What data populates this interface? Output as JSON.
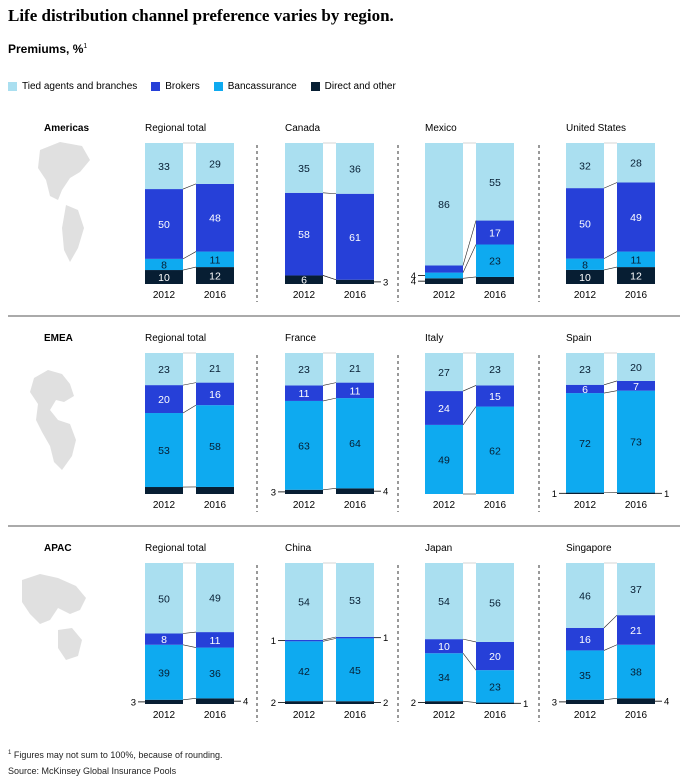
{
  "title": "Life distribution channel preference varies by region.",
  "subtitle": "Premiums, %",
  "subtitle_note": "1",
  "legend": [
    {
      "label": "Tied agents and branches",
      "color": "#aadff0"
    },
    {
      "label": "Brokers",
      "color": "#2640d8"
    },
    {
      "label": "Bancassurance",
      "color": "#0eaaf0"
    },
    {
      "label": "Direct and other",
      "color": "#071e33"
    }
  ],
  "footnote": "Figures may not sum to 100%, because of rounding.",
  "footnote_marker": "1",
  "source": "Source: McKinsey Global Insurance Pools",
  "chart_data": {
    "type": "bar",
    "stacked": true,
    "series_order": [
      "Direct and other",
      "Bancassurance",
      "Brokers",
      "Tied agents and branches"
    ],
    "years": [
      "2012",
      "2016"
    ],
    "regions": [
      {
        "name": "Americas",
        "panels": [
          {
            "title": "Regional total",
            "bars": [
              {
                "values": [
                  10,
                  8,
                  50,
                  33
                ],
                "outside": [
                  null,
                  null,
                  null,
                  null
                ]
              },
              {
                "values": [
                  12,
                  11,
                  48,
                  29
                ],
                "outside": [
                  null,
                  null,
                  null,
                  null
                ]
              }
            ]
          },
          {
            "title": "Canada",
            "bars": [
              {
                "values": [
                  6,
                  0,
                  58,
                  35
                ],
                "outside": [
                  null,
                  null,
                  null,
                  null
                ]
              },
              {
                "values": [
                  3,
                  0,
                  61,
                  36
                ],
                "outside": [
                  "3",
                  null,
                  null,
                  null
                ]
              }
            ]
          },
          {
            "title": "Mexico",
            "bars": [
              {
                "values": [
                  4,
                  4,
                  5,
                  86
                ],
                "outside": [
                  "4",
                  "4",
                  null,
                  null
                ]
              },
              {
                "values": [
                  5,
                  23,
                  17,
                  55
                ],
                "outside": [
                  null,
                  null,
                  null,
                  null
                ]
              }
            ]
          },
          {
            "title": "United States",
            "bars": [
              {
                "values": [
                  10,
                  8,
                  50,
                  32
                ],
                "outside": [
                  null,
                  null,
                  null,
                  null
                ]
              },
              {
                "values": [
                  12,
                  11,
                  49,
                  28
                ],
                "outside": [
                  null,
                  null,
                  null,
                  null
                ]
              }
            ]
          }
        ]
      },
      {
        "name": "EMEA",
        "panels": [
          {
            "title": "Regional total",
            "bars": [
              {
                "values": [
                  5,
                  53,
                  20,
                  23
                ],
                "outside": [
                  null,
                  null,
                  null,
                  null
                ]
              },
              {
                "values": [
                  5,
                  58,
                  16,
                  21
                ],
                "outside": [
                  null,
                  null,
                  null,
                  null
                ]
              }
            ]
          },
          {
            "title": "France",
            "bars": [
              {
                "values": [
                  3,
                  63,
                  11,
                  23
                ],
                "outside": [
                  "3",
                  null,
                  null,
                  null
                ]
              },
              {
                "values": [
                  4,
                  64,
                  11,
                  21
                ],
                "outside": [
                  "4",
                  null,
                  null,
                  null
                ]
              }
            ]
          },
          {
            "title": "Italy",
            "bars": [
              {
                "values": [
                  0,
                  49,
                  24,
                  27
                ],
                "outside": [
                  null,
                  null,
                  null,
                  null
                ]
              },
              {
                "values": [
                  0,
                  62,
                  15,
                  23
                ],
                "outside": [
                  null,
                  null,
                  null,
                  null
                ]
              }
            ]
          },
          {
            "title": "Spain",
            "bars": [
              {
                "values": [
                  1,
                  72,
                  6,
                  23
                ],
                "outside": [
                  "1",
                  null,
                  null,
                  null
                ]
              },
              {
                "values": [
                  1,
                  73,
                  7,
                  20
                ],
                "outside": [
                  "1",
                  null,
                  null,
                  null
                ]
              }
            ]
          }
        ]
      },
      {
        "name": "APAC",
        "panels": [
          {
            "title": "Regional total",
            "bars": [
              {
                "values": [
                  3,
                  39,
                  8,
                  50
                ],
                "outside": [
                  "3",
                  null,
                  null,
                  null
                ]
              },
              {
                "values": [
                  4,
                  36,
                  11,
                  49
                ],
                "outside": [
                  "4",
                  null,
                  null,
                  null
                ]
              }
            ]
          },
          {
            "title": "China",
            "bars": [
              {
                "values": [
                  2,
                  42,
                  1,
                  54
                ],
                "outside": [
                  "2",
                  null,
                  "1",
                  null
                ]
              },
              {
                "values": [
                  2,
                  45,
                  1,
                  53
                ],
                "outside": [
                  "2",
                  null,
                  "1",
                  null
                ]
              }
            ]
          },
          {
            "title": "Japan",
            "bars": [
              {
                "values": [
                  2,
                  34,
                  10,
                  54
                ],
                "outside": [
                  "2",
                  null,
                  null,
                  null
                ]
              },
              {
                "values": [
                  1,
                  23,
                  20,
                  56
                ],
                "outside": [
                  "1",
                  null,
                  null,
                  null
                ]
              }
            ]
          },
          {
            "title": "Singapore",
            "bars": [
              {
                "values": [
                  3,
                  35,
                  16,
                  46
                ],
                "outside": [
                  "3",
                  null,
                  null,
                  null
                ]
              },
              {
                "values": [
                  4,
                  38,
                  21,
                  37
                ],
                "outside": [
                  "4",
                  null,
                  null,
                  null
                ]
              }
            ]
          }
        ]
      }
    ]
  }
}
